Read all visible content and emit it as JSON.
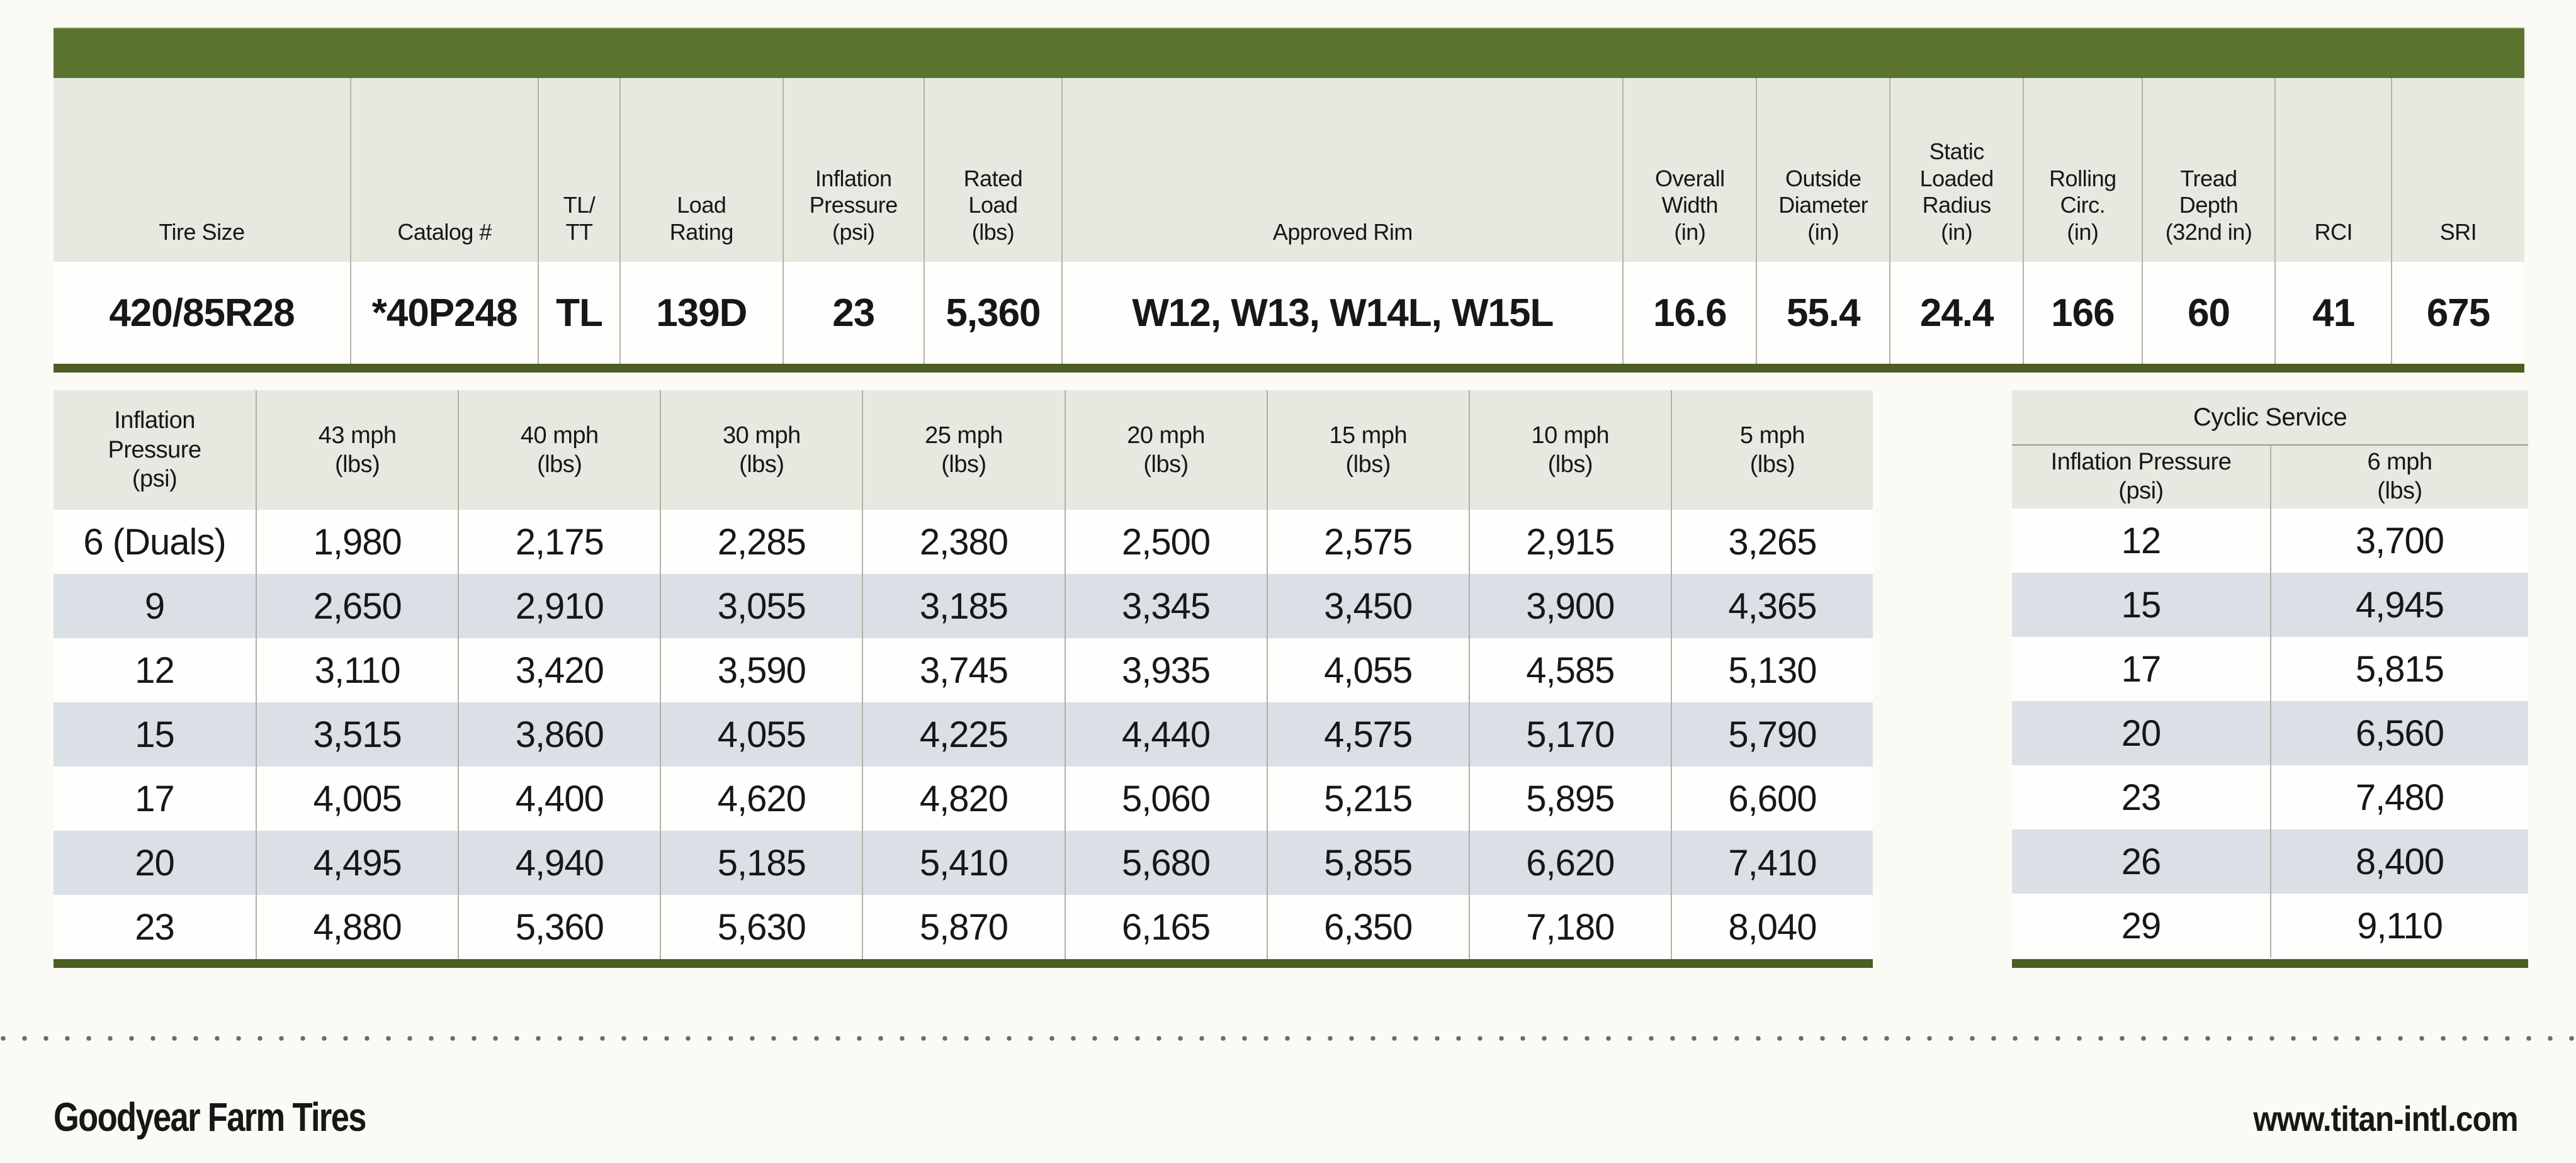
{
  "colors": {
    "bar_green": "#5a7430",
    "rule_olive": "#4c5e22",
    "header_bg": "#e7e8e0",
    "alt_row_bg": "#dbe0e7",
    "page_bg": "#fbfaf5"
  },
  "spec_table": {
    "headers": [
      "Tire Size",
      "Catalog #",
      "TL/\nTT",
      "Load\nRating",
      "Inflation\nPressure\n(psi)",
      "Rated\nLoad\n(lbs)",
      "Approved Rim",
      "Overall\nWidth\n(in)",
      "Outside\nDiameter\n(in)",
      "Static\nLoaded\nRadius\n(in)",
      "Rolling\nCirc.\n(in)",
      "Tread\nDepth\n(32nd in)",
      "RCI",
      "SRI"
    ],
    "row": [
      "420/85R28",
      "*40P248",
      "TL",
      "139D",
      "23",
      "5,360",
      "W12, W13, W14L, W15L",
      "16.6",
      "55.4",
      "24.4",
      "166",
      "60",
      "41",
      "675"
    ]
  },
  "load_table": {
    "headers": [
      "Inflation\nPressure\n(psi)",
      "43 mph\n(lbs)",
      "40 mph\n(lbs)",
      "30 mph\n(lbs)",
      "25 mph\n(lbs)",
      "20 mph\n(lbs)",
      "15 mph\n(lbs)",
      "10 mph\n(lbs)",
      "5 mph\n(lbs)"
    ],
    "rows": [
      [
        "6 (Duals)",
        "1,980",
        "2,175",
        "2,285",
        "2,380",
        "2,500",
        "2,575",
        "2,915",
        "3,265"
      ],
      [
        "9",
        "2,650",
        "2,910",
        "3,055",
        "3,185",
        "3,345",
        "3,450",
        "3,900",
        "4,365"
      ],
      [
        "12",
        "3,110",
        "3,420",
        "3,590",
        "3,745",
        "3,935",
        "4,055",
        "4,585",
        "5,130"
      ],
      [
        "15",
        "3,515",
        "3,860",
        "4,055",
        "4,225",
        "4,440",
        "4,575",
        "5,170",
        "5,790"
      ],
      [
        "17",
        "4,005",
        "4,400",
        "4,620",
        "4,820",
        "5,060",
        "5,215",
        "5,895",
        "6,600"
      ],
      [
        "20",
        "4,495",
        "4,940",
        "5,185",
        "5,410",
        "5,680",
        "5,855",
        "6,620",
        "7,410"
      ],
      [
        "23",
        "4,880",
        "5,360",
        "5,630",
        "5,870",
        "6,165",
        "6,350",
        "7,180",
        "8,040"
      ]
    ]
  },
  "cyclic_table": {
    "title": "Cyclic Service",
    "headers": [
      "Inflation Pressure\n(psi)",
      "6 mph\n(lbs)"
    ],
    "rows": [
      [
        "12",
        "3,700"
      ],
      [
        "15",
        "4,945"
      ],
      [
        "17",
        "5,815"
      ],
      [
        "20",
        "6,560"
      ],
      [
        "23",
        "7,480"
      ],
      [
        "26",
        "8,400"
      ],
      [
        "29",
        "9,110"
      ]
    ]
  },
  "footer": {
    "brand": "Goodyear Farm Tires",
    "website": "www.titan-intl.com"
  }
}
